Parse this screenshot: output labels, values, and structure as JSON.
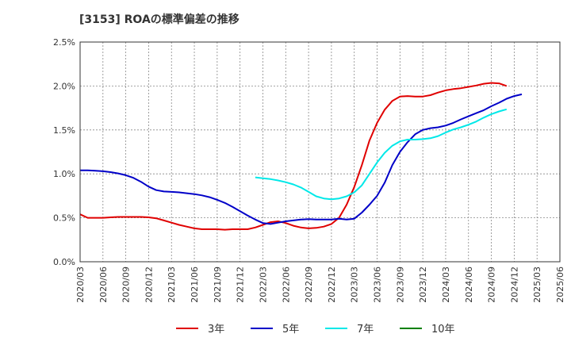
{
  "chart_data": {
    "type": "line",
    "title": "[3153]  ROAの標準偏差の推移",
    "xlabel": "",
    "ylabel": "",
    "ylim": [
      0,
      2.5
    ],
    "y_ticks": [
      0,
      0.5,
      1.0,
      1.5,
      2.0,
      2.5
    ],
    "y_tick_labels": [
      "0.0%",
      "0.5%",
      "1.0%",
      "1.5%",
      "2.0%",
      "2.5%"
    ],
    "x_tick_labels": [
      "2020/03",
      "2020/06",
      "2020/09",
      "2020/12",
      "2021/03",
      "2021/06",
      "2021/09",
      "2021/12",
      "2022/03",
      "2022/06",
      "2022/09",
      "2022/12",
      "2023/03",
      "2023/06",
      "2023/09",
      "2023/12",
      "2024/03",
      "2024/06",
      "2024/09",
      "2024/12",
      "2025/03",
      "2025/06"
    ],
    "grid": true,
    "legend_position": "bottom",
    "series": [
      {
        "name": "3年",
        "color": "#e00000",
        "start_index": 0,
        "values": [
          0.54,
          0.5,
          0.5,
          0.5,
          0.505,
          0.51,
          0.51,
          0.51,
          0.51,
          0.505,
          0.495,
          0.47,
          0.445,
          0.42,
          0.4,
          0.38,
          0.37,
          0.37,
          0.37,
          0.365,
          0.37,
          0.37,
          0.37,
          0.39,
          0.42,
          0.45,
          0.46,
          0.44,
          0.41,
          0.39,
          0.38,
          0.385,
          0.4,
          0.43,
          0.5,
          0.65,
          0.85,
          1.1,
          1.38,
          1.58,
          1.73,
          1.83,
          1.88,
          1.885,
          1.88,
          1.88,
          1.895,
          1.925,
          1.95,
          1.965,
          1.975,
          1.99,
          2.005,
          2.025,
          2.035,
          2.03,
          2.0
        ]
      },
      {
        "name": "5年",
        "color": "#0000c8",
        "start_index": 0,
        "values": [
          1.04,
          1.04,
          1.035,
          1.03,
          1.02,
          1.005,
          0.985,
          0.955,
          0.91,
          0.855,
          0.815,
          0.8,
          0.795,
          0.79,
          0.78,
          0.77,
          0.755,
          0.735,
          0.705,
          0.67,
          0.625,
          0.575,
          0.525,
          0.48,
          0.44,
          0.43,
          0.445,
          0.46,
          0.47,
          0.48,
          0.485,
          0.48,
          0.48,
          0.48,
          0.49,
          0.48,
          0.49,
          0.56,
          0.65,
          0.75,
          0.9,
          1.1,
          1.25,
          1.36,
          1.45,
          1.5,
          1.52,
          1.53,
          1.55,
          1.58,
          1.62,
          1.655,
          1.69,
          1.725,
          1.77,
          1.81,
          1.855,
          1.885,
          1.905
        ]
      },
      {
        "name": "7年",
        "color": "#00e8e8",
        "start_index": 23,
        "values": [
          0.96,
          0.95,
          0.94,
          0.925,
          0.905,
          0.88,
          0.845,
          0.795,
          0.745,
          0.72,
          0.71,
          0.72,
          0.745,
          0.79,
          0.87,
          1.0,
          1.13,
          1.24,
          1.32,
          1.37,
          1.39,
          1.39,
          1.395,
          1.405,
          1.43,
          1.47,
          1.505,
          1.53,
          1.56,
          1.595,
          1.64,
          1.68,
          1.71,
          1.735
        ]
      },
      {
        "name": "10年",
        "color": "#008000",
        "start_index": 0,
        "values": []
      }
    ]
  }
}
